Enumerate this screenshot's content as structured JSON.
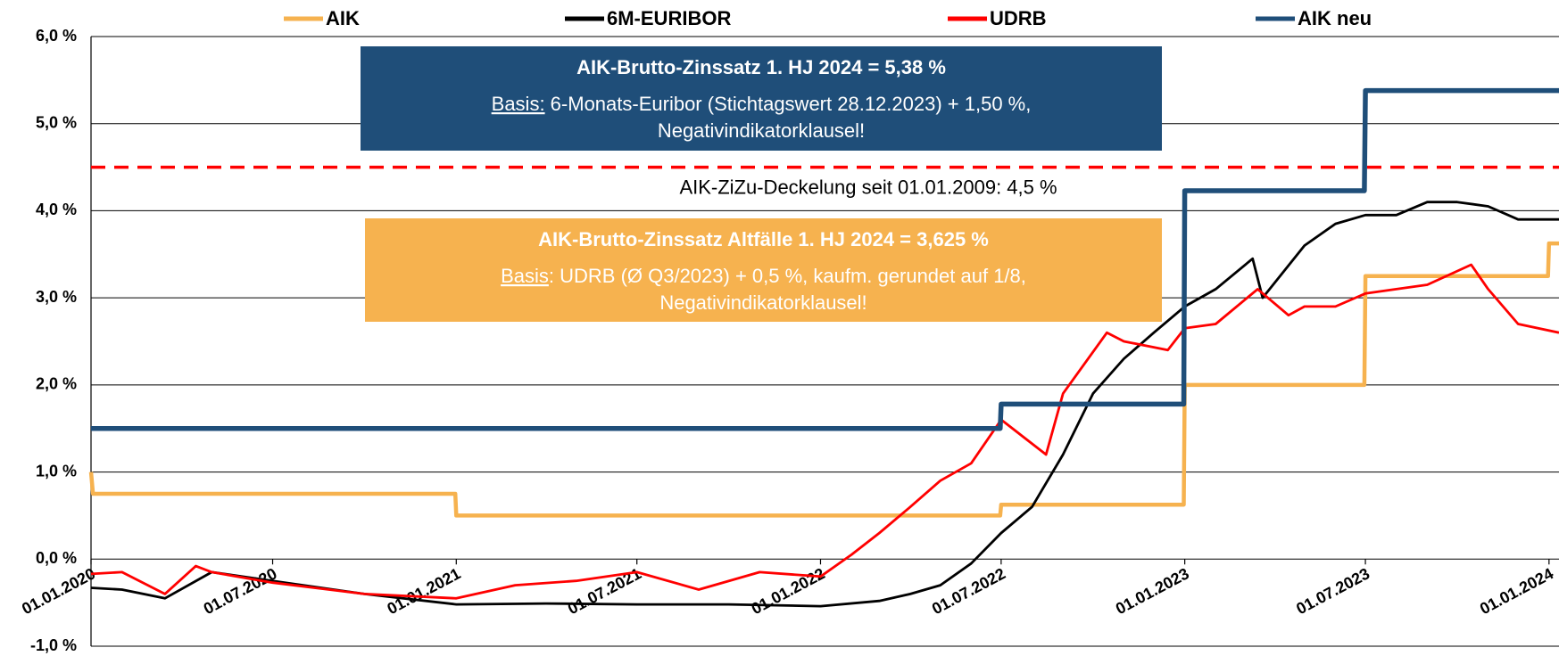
{
  "chart_data": {
    "type": "line",
    "xlim": [
      "01.01.2020",
      "11.01.2024"
    ],
    "xticks": [
      "01.01.2020",
      "01.07.2020",
      "01.01.2021",
      "01.07.2021",
      "01.01.2022",
      "01.07.2022",
      "01.01.2023",
      "01.07.2023",
      "01.01.2024"
    ],
    "ylim": [
      -1,
      6
    ],
    "yticks": [
      {
        "value": -1,
        "label": "-1,0 %"
      },
      {
        "value": 0,
        "label": "0,0 %"
      },
      {
        "value": 1,
        "label": "1,0 %"
      },
      {
        "value": 2,
        "label": "2,0 %"
      },
      {
        "value": 3,
        "label": "3,0 %"
      },
      {
        "value": 4,
        "label": "4,0 %"
      },
      {
        "value": 5,
        "label": "5,0 %"
      },
      {
        "value": 6,
        "label": "6,0 %"
      }
    ],
    "grid": true,
    "legend": "top",
    "series": [
      {
        "name": "AIK",
        "color": "#F6B24F",
        "width": 4.5,
        "x": [
          "01.01.2020",
          "03.01.2020",
          "31.12.2020",
          "01.01.2021",
          "30.06.2022",
          "01.07.2022",
          "31.12.2022",
          "01.01.2023",
          "30.06.2023",
          "01.07.2023",
          "31.12.2023",
          "01.01.2024",
          "11.01.2024"
        ],
        "values": [
          1.0,
          0.75,
          0.75,
          0.5,
          0.5,
          0.625,
          0.625,
          2.0,
          2.0,
          3.25,
          3.25,
          3.625,
          3.625
        ]
      },
      {
        "name": "6M-EURIBOR",
        "color": "#000000",
        "width": 2.8,
        "x": [
          "01.01.2020",
          "01.02.2020",
          "15.03.2020",
          "01.05.2020",
          "01.07.2020",
          "01.10.2020",
          "01.01.2021",
          "01.04.2021",
          "01.07.2021",
          "01.10.2021",
          "01.01.2022",
          "01.03.2022",
          "01.04.2022",
          "01.05.2022",
          "01.06.2022",
          "01.07.2022",
          "01.08.2022",
          "01.09.2022",
          "01.10.2022",
          "01.11.2022",
          "01.12.2022",
          "01.01.2023",
          "01.02.2023",
          "10.03.2023",
          "20.03.2023",
          "01.05.2023",
          "01.06.2023",
          "01.07.2023",
          "01.08.2023",
          "01.09.2023",
          "01.10.2023",
          "01.11.2023",
          "01.12.2023",
          "11.01.2024"
        ],
        "values": [
          -0.33,
          -0.35,
          -0.45,
          -0.15,
          -0.25,
          -0.4,
          -0.52,
          -0.51,
          -0.52,
          -0.52,
          -0.54,
          -0.48,
          -0.4,
          -0.3,
          -0.05,
          0.3,
          0.6,
          1.2,
          1.9,
          2.3,
          2.6,
          2.9,
          3.1,
          3.45,
          3.0,
          3.6,
          3.85,
          3.95,
          3.95,
          4.1,
          4.1,
          4.05,
          3.9,
          3.9
        ]
      },
      {
        "name": "UDRB",
        "color": "#FF0000",
        "width": 2.8,
        "x": [
          "01.01.2020",
          "01.02.2020",
          "15.03.2020",
          "15.04.2020",
          "01.05.2020",
          "01.07.2020",
          "01.10.2020",
          "01.01.2021",
          "01.03.2021",
          "01.05.2021",
          "01.07.2021",
          "01.09.2021",
          "01.11.2021",
          "01.01.2022",
          "01.02.2022",
          "01.03.2022",
          "01.04.2022",
          "01.05.2022",
          "01.06.2022",
          "01.07.2022",
          "15.08.2022",
          "01.09.2022",
          "15.10.2022",
          "01.11.2022",
          "15.12.2022",
          "01.01.2023",
          "01.02.2023",
          "15.03.2023",
          "15.04.2023",
          "01.05.2023",
          "01.06.2023",
          "01.07.2023",
          "01.08.2023",
          "01.09.2023",
          "15.10.2023",
          "01.11.2023",
          "01.12.2023",
          "11.01.2024"
        ],
        "values": [
          -0.17,
          -0.15,
          -0.4,
          -0.08,
          -0.15,
          -0.27,
          -0.4,
          -0.45,
          -0.3,
          -0.25,
          -0.15,
          -0.35,
          -0.15,
          -0.2,
          0.05,
          0.3,
          0.6,
          0.9,
          1.1,
          1.6,
          1.2,
          1.9,
          2.6,
          2.5,
          2.4,
          2.65,
          2.7,
          3.1,
          2.8,
          2.9,
          2.9,
          3.05,
          3.1,
          3.15,
          3.38,
          3.1,
          2.7,
          2.6
        ]
      },
      {
        "name": "AIK neu",
        "color": "#1F4E79",
        "width": 5.5,
        "x": [
          "01.01.2020",
          "30.06.2022",
          "01.07.2022",
          "31.12.2022",
          "01.01.2023",
          "30.06.2023",
          "01.07.2023",
          "11.01.2024"
        ],
        "values": [
          1.5,
          1.5,
          1.78,
          1.78,
          4.23,
          4.23,
          5.38,
          5.38
        ]
      }
    ],
    "cap": {
      "value": 4.5,
      "color": "#FF0000",
      "label": "AIK-ZiZu-Deckelung seit 01.01.2009: 4,5 %"
    },
    "boxes": [
      {
        "color": "#1F4E79",
        "title": "AIK-Brutto-Zinssatz 1. HJ 2024 = 5,38 %",
        "basis_label": "Basis:",
        "basis_text": " 6-Monats-Euribor (Stichtagswert 28.12.2023) + 1,50 %,",
        "note": "Negativindikatorklausel!"
      },
      {
        "color": "#F6B24F",
        "title": "AIK-Brutto-Zinssatz Altfälle 1. HJ 2024 = 3,625 %",
        "basis_label": "Basis",
        "basis_text": ": UDRB (Ø Q3/2023) + 0,5 %, kaufm. gerundet auf 1/8,",
        "note": "Negativindikatorklausel!"
      }
    ]
  }
}
